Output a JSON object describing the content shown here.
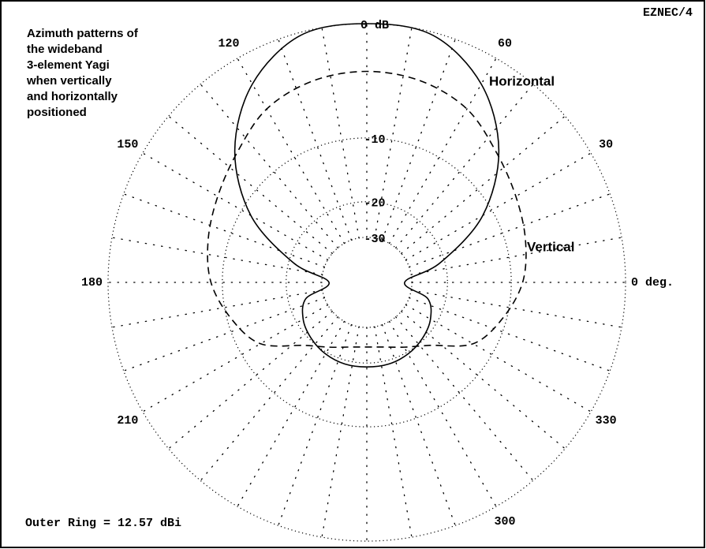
{
  "chart_data": {
    "type": "polar",
    "title": [
      "Azimuth patterns of",
      "the wideband",
      "3-element  Yagi",
      "when vertically",
      "and horizontally",
      "positioned"
    ],
    "program": "EZNEC/4",
    "footer": "Outer Ring = 12.57 dBi",
    "rscale": "arrl-log",
    "rlim": [
      -50,
      0
    ],
    "rticks": [
      {
        "value": 0,
        "label": "0 dB"
      },
      -10,
      -20,
      -30
    ],
    "thetaticks": [
      {
        "value": 0,
        "label": "0 deg."
      },
      30,
      60,
      120,
      150,
      180,
      210,
      300,
      330
    ],
    "theta_grid_step": 10,
    "theta": [
      0,
      15,
      30,
      45,
      60,
      75,
      90,
      105,
      120,
      135,
      150,
      165,
      180,
      195,
      210,
      225,
      240,
      255,
      270,
      285,
      300,
      315,
      330,
      345
    ],
    "series": [
      {
        "name": "Horizontal",
        "color": "#000000",
        "dash": "solid",
        "values": [
          -33,
          -21,
          -11.3,
          -5.6,
          -2.1,
          -0.2,
          0,
          -0.2,
          -2.1,
          -5.6,
          -11.3,
          -21,
          -33,
          -24.2,
          -21.6,
          -20.4,
          -19.6,
          -19.2,
          -19.2,
          -19.2,
          -19.6,
          -20.4,
          -21.6,
          -24.2
        ]
      },
      {
        "name": "Vertical",
        "color": "#000000",
        "dash": "dashed",
        "values": [
          -8.7,
          -7.8,
          -7.0,
          -5.9,
          -4.4,
          -3.7,
          -3.5,
          -3.7,
          -4.4,
          -5.9,
          -7.0,
          -7.8,
          -8.7,
          -10.5,
          -12.8,
          -18.3,
          -21.3,
          -23.2,
          -23.8,
          -23.2,
          -21.3,
          -18.3,
          -12.8,
          -10.5
        ]
      }
    ]
  }
}
